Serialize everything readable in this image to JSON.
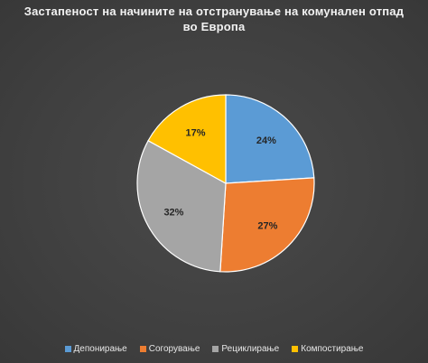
{
  "chart_data": {
    "type": "pie",
    "title_lines": [
      "Застапеност на начините на отстранување на комунален отпад",
      "во Европа"
    ],
    "categories": [
      "Депонирање",
      "Согорување",
      "Рециклирање",
      "Компостирање"
    ],
    "values": [
      24,
      27,
      32,
      17
    ],
    "value_labels": [
      "24%",
      "27%",
      "32%",
      "17%"
    ],
    "colors": [
      "#5b9bd5",
      "#ed7d31",
      "#a5a5a5",
      "#ffc000"
    ],
    "legend_position": "bottom",
    "start_angle": "12 o'clock",
    "direction": "clockwise"
  }
}
